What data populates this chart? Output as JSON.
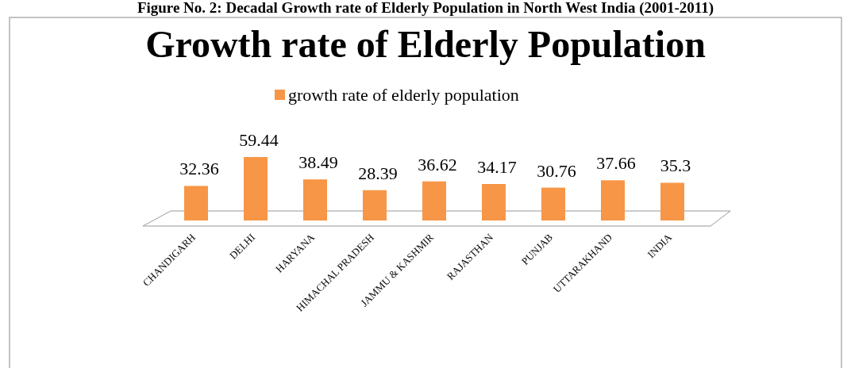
{
  "chart_data": {
    "type": "bar",
    "title": "Growth rate of Elderly Population",
    "annotations": [
      "Figure No. 2: Decadal Growth rate of Elderly Population in North West India (2001-2011)"
    ],
    "categories": [
      "CHANDIGARH",
      "DELHI",
      "HARYANA",
      "HIMACHAL PRADESH",
      "JAMMU & KASHMIR",
      "RAJASTHAN",
      "PUNJAB",
      "UTTARAKHAND",
      "INDIA"
    ],
    "series": [
      {
        "name": "growth rate of elderly population",
        "color": "#f79646",
        "values": [
          32.36,
          59.44,
          38.49,
          28.39,
          36.62,
          34.17,
          30.76,
          37.66,
          35.3
        ]
      }
    ],
    "data_labels": true,
    "legend": "top",
    "grid": false
  }
}
